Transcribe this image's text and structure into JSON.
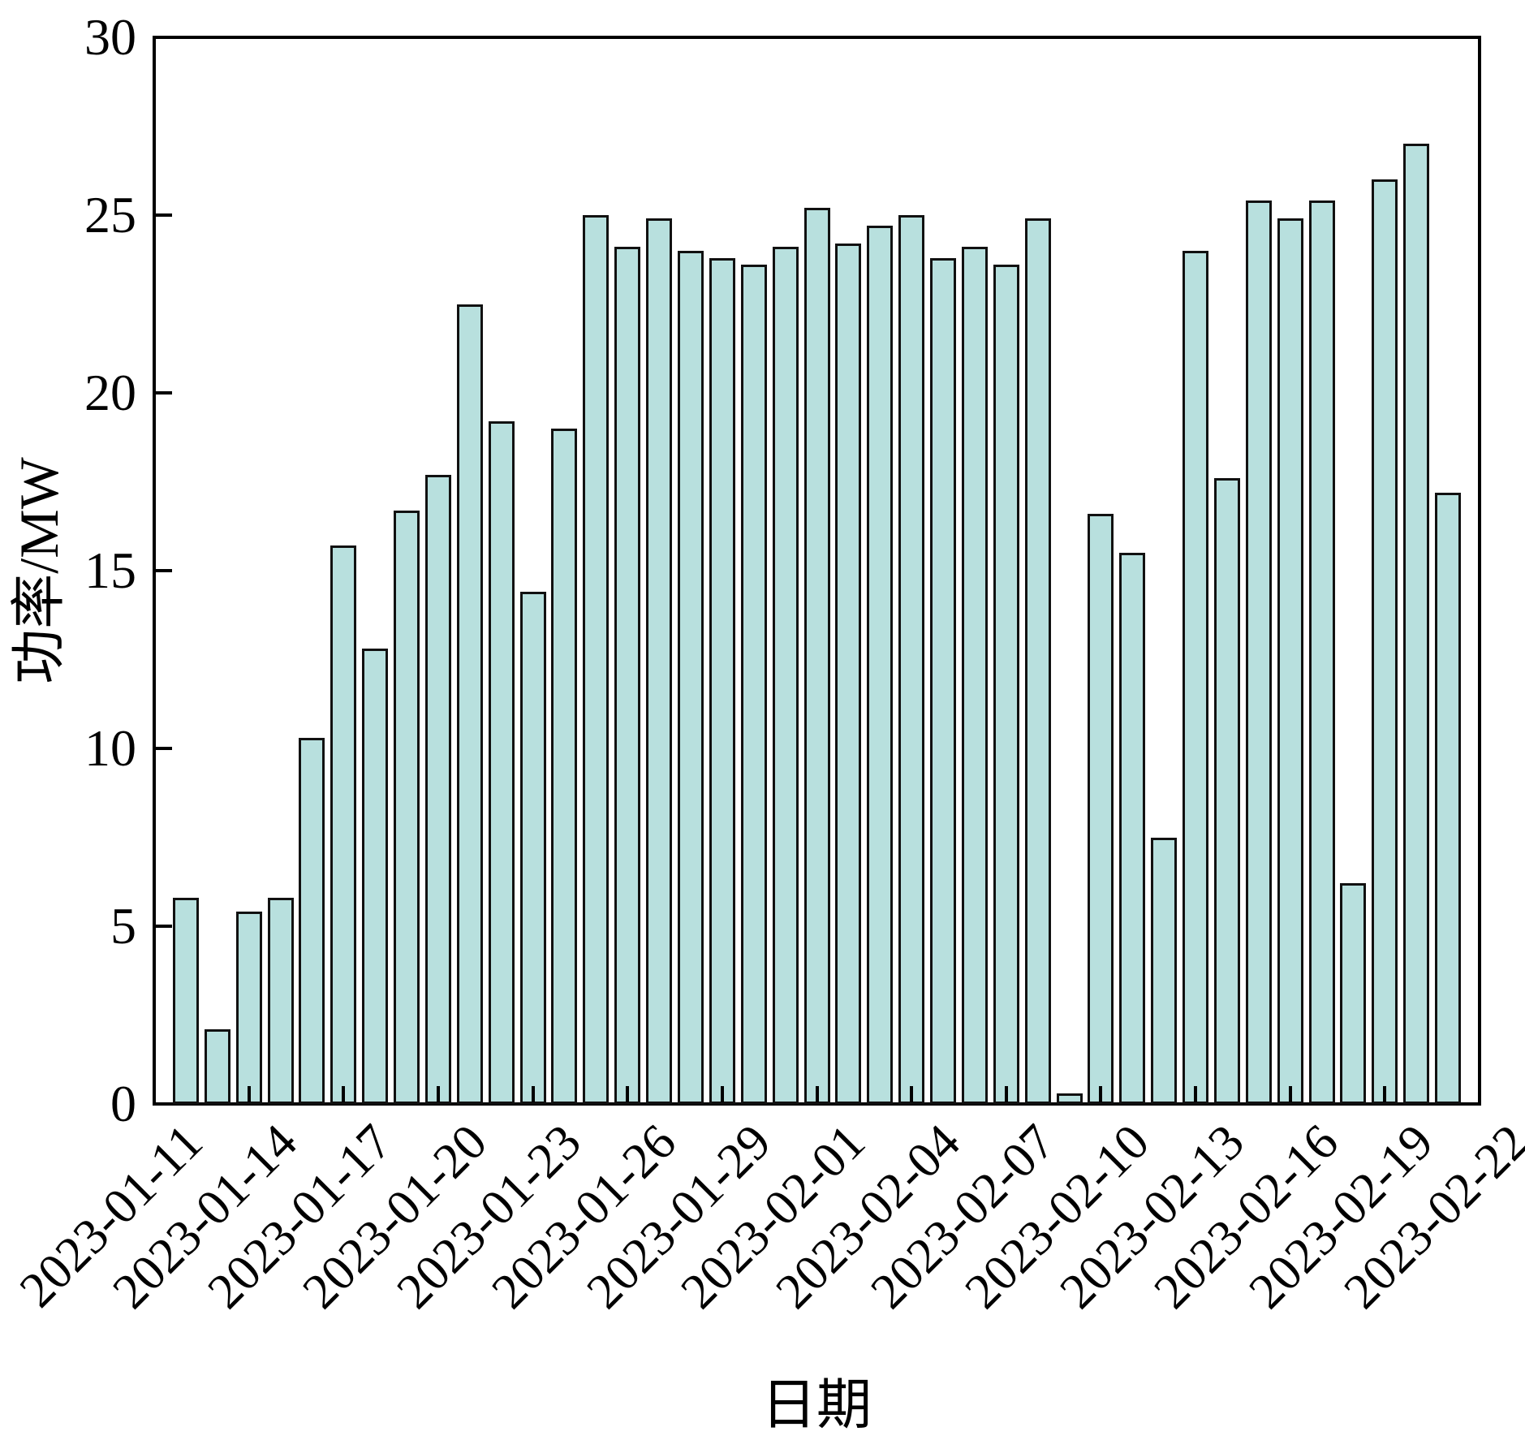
{
  "figure": {
    "background": "#ffffff"
  },
  "chart_data": {
    "type": "bar",
    "title": "",
    "xlabel": "日期",
    "ylabel": "功率/MW",
    "ylim": [
      0,
      30
    ],
    "yticks": [
      0,
      5,
      10,
      15,
      20,
      25,
      30
    ],
    "xlim": [
      "2023-01-11",
      "2023-02-22"
    ],
    "xtick_labels": [
      "2023-01-11",
      "2023-01-14",
      "2023-01-17",
      "2023-01-20",
      "2023-01-23",
      "2023-01-26",
      "2023-01-29",
      "2023-02-01",
      "2023-02-04",
      "2023-02-07",
      "2023-02-10",
      "2023-02-13",
      "2023-02-16",
      "2023-02-19",
      "2023-02-22"
    ],
    "grid": false,
    "legend": null,
    "bar_fill_color": "#b8e0de",
    "bar_edge_color": "#111111",
    "axis_color": "#000000",
    "categories": [
      "2023-01-12",
      "2023-01-13",
      "2023-01-14",
      "2023-01-15",
      "2023-01-16",
      "2023-01-17",
      "2023-01-18",
      "2023-01-19",
      "2023-01-20",
      "2023-01-21",
      "2023-01-22",
      "2023-01-23",
      "2023-01-24",
      "2023-01-25",
      "2023-01-26",
      "2023-01-27",
      "2023-01-28",
      "2023-01-29",
      "2023-01-30",
      "2023-01-31",
      "2023-02-01",
      "2023-02-02",
      "2023-02-03",
      "2023-02-04",
      "2023-02-05",
      "2023-02-06",
      "2023-02-07",
      "2023-02-08",
      "2023-02-09",
      "2023-02-10",
      "2023-02-11",
      "2023-02-12",
      "2023-02-13",
      "2023-02-14",
      "2023-02-15",
      "2023-02-16",
      "2023-02-17",
      "2023-02-18",
      "2023-02-19",
      "2023-02-20",
      "2023-02-21"
    ],
    "values": [
      5.8,
      2.1,
      5.4,
      5.8,
      10.3,
      15.7,
      12.8,
      16.7,
      17.7,
      22.5,
      19.2,
      14.4,
      19.0,
      25.0,
      24.1,
      24.9,
      24.0,
      23.8,
      23.6,
      24.1,
      25.2,
      24.2,
      24.7,
      25.0,
      23.8,
      24.1,
      23.6,
      24.9,
      0.3,
      16.6,
      15.5,
      7.5,
      24.0,
      17.6,
      25.4,
      24.9,
      25.4,
      6.2,
      26.0,
      27.0,
      17.2
    ]
  }
}
